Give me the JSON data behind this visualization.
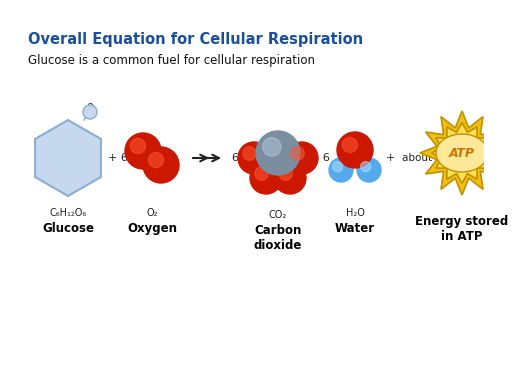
{
  "title": "Overall Equation for Cellular Respiration",
  "subtitle": "Glucose is a common fuel for cellular respiration",
  "title_color": "#1a4fa0",
  "subtitle_color": "#111111",
  "bg_color": "#ffffff",
  "title_fontsize": 10.5,
  "subtitle_fontsize": 8.5,
  "labels": {
    "glucose_formula": "C₆H₁₂O₆",
    "glucose_name": "Glucose",
    "oxygen_formula": "O₂",
    "oxygen_name": "Oxygen",
    "co2_formula": "CO₂",
    "co2_name": "Carbon\ndioxide",
    "water_formula": "H₂O",
    "water_name": "Water",
    "atp_label": "ATP",
    "energy_name": "Energy stored\nin ATP",
    "about38": "about 38"
  },
  "colors": {
    "hexagon_fill": "#c5d8ed",
    "hexagon_edge": "#8aaecf",
    "red_ball": "#cc1800",
    "red_ball_highlight": "#ff5533",
    "grey_ball": "#7a8ea0",
    "grey_ball_highlight": "#b0c4d8",
    "blue_ball": "#55aaee",
    "blue_ball_highlight": "#aaddff",
    "star_outer": "#f0c010",
    "star_inner": "#ffe050",
    "atp_text": "#cc7700",
    "atp_bg": "#ffe898",
    "label_bold": "#000000",
    "arrow_color": "#222222"
  }
}
